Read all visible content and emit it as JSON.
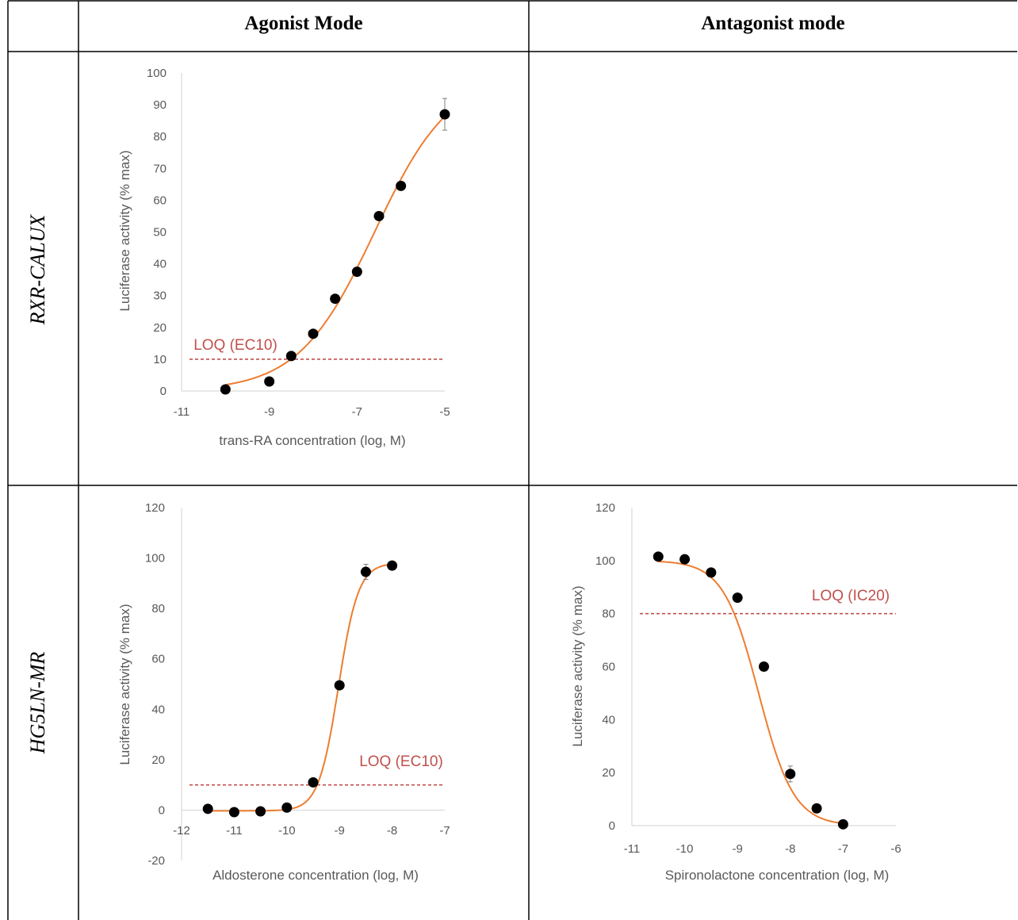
{
  "table": {
    "headers": [
      "",
      "Agonist Mode",
      "Antagonist mode"
    ],
    "rows": [
      {
        "label": "RXR-CALUX"
      },
      {
        "label": "HG5LN-MR"
      }
    ]
  },
  "chart_data": [
    {
      "type": "scatter",
      "xlabel": "trans-RA concentration (log, M)",
      "ylabel": "Luciferase activity (% max)",
      "xlim": [
        -11,
        -5
      ],
      "ylim": [
        0,
        100
      ],
      "xticks": [
        -11,
        -9,
        -7,
        -5
      ],
      "yticks": [
        0,
        10,
        20,
        30,
        40,
        50,
        60,
        70,
        80,
        90,
        100
      ],
      "x": [
        -10,
        -9,
        -8.5,
        -8,
        -7.5,
        -7,
        -6.5,
        -6,
        -5
      ],
      "y": [
        0.5,
        3,
        11,
        18,
        29,
        37.5,
        55,
        64.5,
        87
      ],
      "errors": [
        0,
        0,
        0,
        0,
        0,
        0,
        0,
        0,
        5
      ],
      "fit_curve": {
        "model": "hill",
        "bottom": 0,
        "top": 100,
        "log_ec50": -6.6,
        "hill_slope": 0.5
      },
      "reference_line": {
        "y": 10,
        "label": "LOQ (EC10)"
      },
      "grid": false
    },
    {
      "type": "scatter",
      "xlabel": "Aldosterone concentration (log, M)",
      "ylabel": "Luciferase activity (% max)",
      "xlim": [
        -12,
        -7
      ],
      "ylim": [
        -20,
        120
      ],
      "xticks": [
        -12,
        -11,
        -10,
        -9,
        -8,
        -7
      ],
      "yticks": [
        -20,
        0,
        20,
        40,
        60,
        80,
        100,
        120
      ],
      "x": [
        -11.5,
        -11,
        -10.5,
        -10,
        -9.5,
        -9,
        -8.5,
        -8
      ],
      "y": [
        0.5,
        -0.8,
        -0.5,
        1,
        11,
        49.5,
        94.5,
        97
      ],
      "errors": [
        0,
        0,
        0,
        0,
        0,
        0,
        3,
        0
      ],
      "fit_curve": {
        "model": "hill",
        "bottom": -0.3,
        "top": 98,
        "log_ec50": -9.02,
        "hill_slope": 2.3
      },
      "reference_line": {
        "y": 10,
        "label": "LOQ (EC10)"
      },
      "grid": false
    },
    {
      "type": "scatter",
      "xlabel": "Spironolactone concentration (log, M)",
      "ylabel": "Luciferase activity (% max)",
      "xlim": [
        -11,
        -6
      ],
      "ylim": [
        0,
        120
      ],
      "xticks": [
        -11,
        -10,
        -9,
        -8,
        -7,
        -6
      ],
      "yticks": [
        0,
        20,
        40,
        60,
        80,
        100,
        120
      ],
      "x": [
        -10.5,
        -10,
        -9.5,
        -9,
        -8.5,
        -8,
        -7.5,
        -7
      ],
      "y": [
        101.5,
        100.5,
        95.5,
        86,
        60,
        19.5,
        6.5,
        0.5
      ],
      "errors": [
        0,
        0,
        0,
        0,
        0,
        3,
        0,
        0
      ],
      "fit_curve": {
        "model": "hill",
        "bottom": 0,
        "top": 100,
        "log_ec50": -8.6,
        "hill_slope": -1.3
      },
      "reference_line": {
        "y": 80,
        "label": "LOQ (IC20)"
      },
      "grid": false
    }
  ]
}
